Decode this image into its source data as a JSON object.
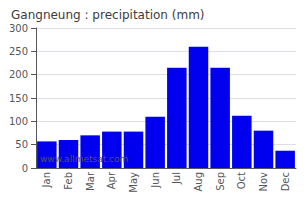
{
  "chart_data": {
    "type": "bar",
    "title": "Gangneung : precipitation (mm)",
    "categories": [
      "Jan",
      "Feb",
      "Mar",
      "Apr",
      "May",
      "Jun",
      "Jul",
      "Aug",
      "Sep",
      "Oct",
      "Nov",
      "Dec"
    ],
    "values": [
      57,
      60,
      70,
      78,
      78,
      110,
      215,
      260,
      215,
      112,
      80,
      37
    ],
    "color": "#0000EE",
    "ylim": [
      0,
      300
    ],
    "yticks": [
      0,
      50,
      100,
      150,
      200,
      250,
      300
    ],
    "grid": true,
    "annotations": [
      "www.allmetsat.com"
    ]
  }
}
